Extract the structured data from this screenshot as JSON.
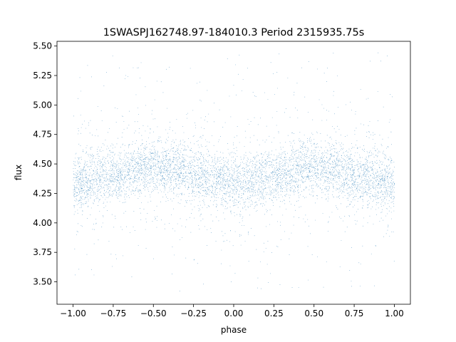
{
  "chart_data": {
    "type": "scatter",
    "title": "1SWASPJ162748.97-184010.3 Period 2315935.75s",
    "xlabel": "phase",
    "ylabel": "flux",
    "xlim": [
      -1.1,
      1.1
    ],
    "ylim": [
      3.31,
      5.54
    ],
    "xticks": [
      -1.0,
      -0.75,
      -0.5,
      -0.25,
      0.0,
      0.25,
      0.5,
      0.75,
      1.0
    ],
    "xtick_labels": [
      "−1.00",
      "−0.75",
      "−0.50",
      "−0.25",
      "0.00",
      "0.25",
      "0.50",
      "0.75",
      "1.00"
    ],
    "yticks": [
      3.5,
      3.75,
      4.0,
      4.25,
      4.5,
      4.75,
      5.0,
      5.25,
      5.5
    ],
    "ytick_labels": [
      "3.50",
      "3.75",
      "4.00",
      "4.25",
      "4.50",
      "4.75",
      "5.00",
      "5.25",
      "5.50"
    ],
    "grid": false,
    "marker_color": "#1f77b4",
    "series": [
      {
        "profile": {
          "x": [
            -1.0,
            -0.9,
            -0.8,
            -0.7,
            -0.6,
            -0.5,
            -0.4,
            -0.3,
            -0.2,
            -0.1,
            0.0,
            0.1,
            0.2,
            0.3,
            0.4,
            0.5,
            0.6,
            0.7,
            0.8,
            0.9,
            1.0
          ],
          "y": [
            4.33,
            4.37,
            4.4,
            4.41,
            4.47,
            4.49,
            4.46,
            4.44,
            4.4,
            4.37,
            4.33,
            4.37,
            4.4,
            4.41,
            4.47,
            4.49,
            4.46,
            4.44,
            4.4,
            4.37,
            4.33
          ]
        },
        "x_range": [
          -1.0,
          1.0
        ],
        "core_spread": [
          4.17,
          4.66
        ],
        "outlier_range": [
          3.42,
          5.45
        ],
        "point_count": 30000
      }
    ]
  }
}
